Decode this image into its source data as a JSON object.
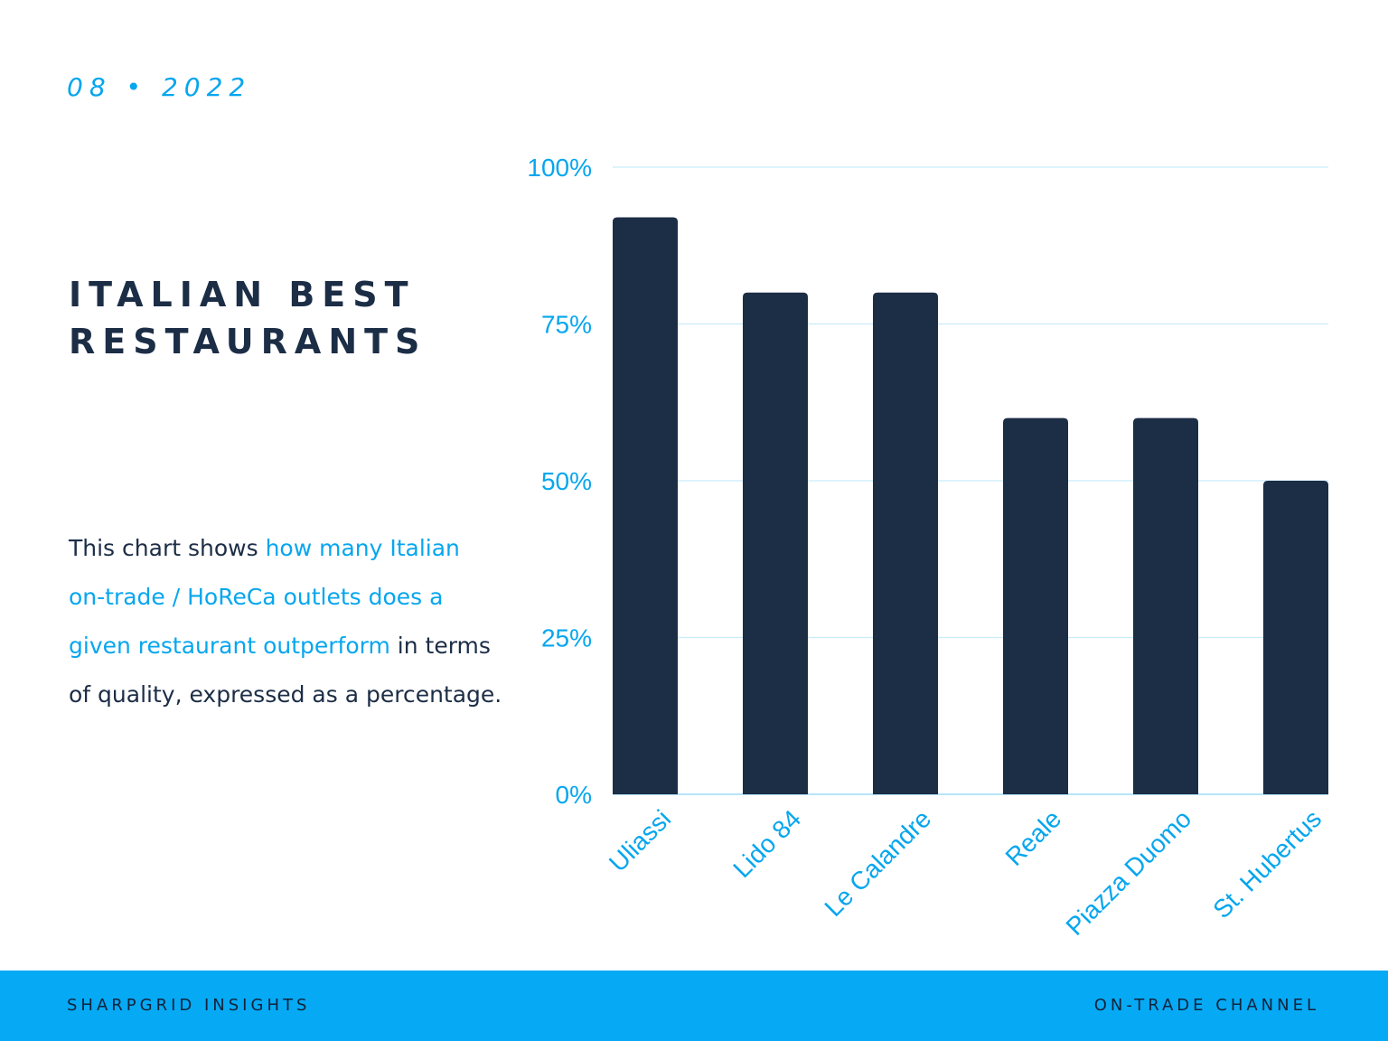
{
  "header": {
    "date": "08 • 2022"
  },
  "title": {
    "line1": "ITALIAN BEST",
    "line2": "RESTAURANTS"
  },
  "description": {
    "part1": "This chart shows ",
    "highlight": "how many Italian on-trade / HoReCa outlets does a given restaurant outperform",
    "part2": " in terms of quality, expressed as a percentage."
  },
  "footer": {
    "left": "SHARPGRID INSIGHTS",
    "right": "ON-TRADE CHANNEL"
  },
  "colors": {
    "accent": "#06a6ee",
    "bar": "#1c2d46",
    "grid": "#c9ecfb",
    "footer": "#06a9f4"
  },
  "chart_data": {
    "type": "bar",
    "categories": [
      "Uliassi",
      "Lido 84",
      "Le Calandre",
      "Reale",
      "Piazza Duomo",
      "St. Hubertus"
    ],
    "values": [
      92,
      80,
      80,
      60,
      60,
      50
    ],
    "ylim": [
      0,
      100
    ],
    "yticks": [
      0,
      25,
      50,
      75,
      100
    ],
    "ytick_labels": [
      "0%",
      "25%",
      "50%",
      "75%",
      "100%"
    ],
    "xlabel": "",
    "ylabel": "",
    "grid": true,
    "legend": "none"
  }
}
